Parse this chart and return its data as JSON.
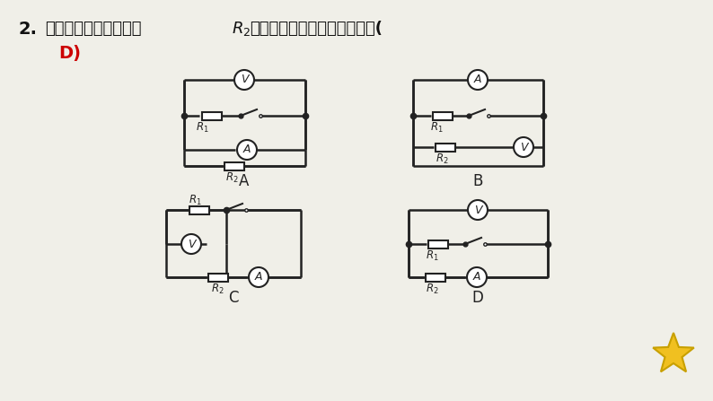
{
  "bg_color": "#f0efe8",
  "line_color": "#222222",
  "text_color": "#111111",
  "answer_color": "#cc0000",
  "star_color": "#f0c020",
  "star_outline": "#c8a000",
  "star_text_color": "#cc4400",
  "title_num": "2.",
  "title_text1": "下列电路中电压表测量",
  "title_r2": "R",
  "title_r2_sub": "2",
  "title_text2": "两端电压，且电路连接正确是(",
  "answer_text": "D)",
  "label_A": "A",
  "label_B": "B",
  "label_C": "C",
  "label_D": "D"
}
